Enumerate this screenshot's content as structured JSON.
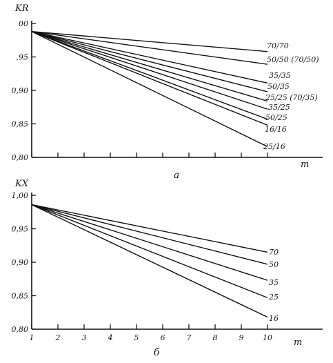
{
  "chart_data": [
    {
      "type": "line",
      "ylabel": "K_R",
      "xlabel": "m",
      "panel_label": "а",
      "xlim": [
        1,
        10
      ],
      "ylim": [
        0.8,
        1.0
      ],
      "yticks": [
        "0,80",
        "0,85",
        "0,90",
        ",95",
        "00"
      ],
      "x_tick_values": [
        1,
        2,
        3,
        4,
        5,
        6,
        7,
        8,
        9,
        10
      ],
      "grid": false,
      "series": [
        {
          "name": "70/70",
          "x": [
            1,
            10
          ],
          "y": [
            0.988,
            0.958
          ]
        },
        {
          "name": "50/50 (70/50)",
          "x": [
            1,
            10
          ],
          "y": [
            0.988,
            0.939
          ]
        },
        {
          "name": "35/35",
          "x": [
            1,
            10
          ],
          "y": [
            0.988,
            0.911
          ]
        },
        {
          "name": "50/35",
          "x": [
            1,
            10
          ],
          "y": [
            0.988,
            0.898
          ]
        },
        {
          "name": "25/25 (70/35)",
          "x": [
            1,
            10
          ],
          "y": [
            0.988,
            0.884
          ]
        },
        {
          "name": "35/25",
          "x": [
            1,
            10
          ],
          "y": [
            0.988,
            0.872
          ]
        },
        {
          "name": "50/25",
          "x": [
            1,
            10
          ],
          "y": [
            0.988,
            0.857
          ]
        },
        {
          "name": "16/16",
          "x": [
            1,
            10
          ],
          "y": [
            0.988,
            0.848
          ]
        },
        {
          "name": "25/16",
          "x": [
            1,
            10
          ],
          "y": [
            0.988,
            0.816
          ]
        }
      ]
    },
    {
      "type": "line",
      "ylabel": "K_X",
      "xlabel": "m",
      "panel_label": "б",
      "xlim": [
        1,
        10
      ],
      "ylim": [
        0.8,
        1.0
      ],
      "yticks": [
        "0,80",
        "0,85",
        "0,90",
        "0,95",
        "1,00"
      ],
      "xticks": [
        "1",
        "2",
        "3",
        "4",
        "5",
        "6",
        "7",
        "8",
        "9",
        "10"
      ],
      "grid": false,
      "series": [
        {
          "name": "70",
          "x": [
            1,
            10
          ],
          "y": [
            0.986,
            0.915
          ]
        },
        {
          "name": "50",
          "x": [
            1,
            10
          ],
          "y": [
            0.986,
            0.897
          ]
        },
        {
          "name": "35",
          "x": [
            1,
            10
          ],
          "y": [
            0.986,
            0.873
          ]
        },
        {
          "name": "25",
          "x": [
            1,
            10
          ],
          "y": [
            0.986,
            0.847
          ]
        },
        {
          "name": "16",
          "x": [
            1,
            10
          ],
          "y": [
            0.986,
            0.818
          ]
        }
      ]
    }
  ]
}
